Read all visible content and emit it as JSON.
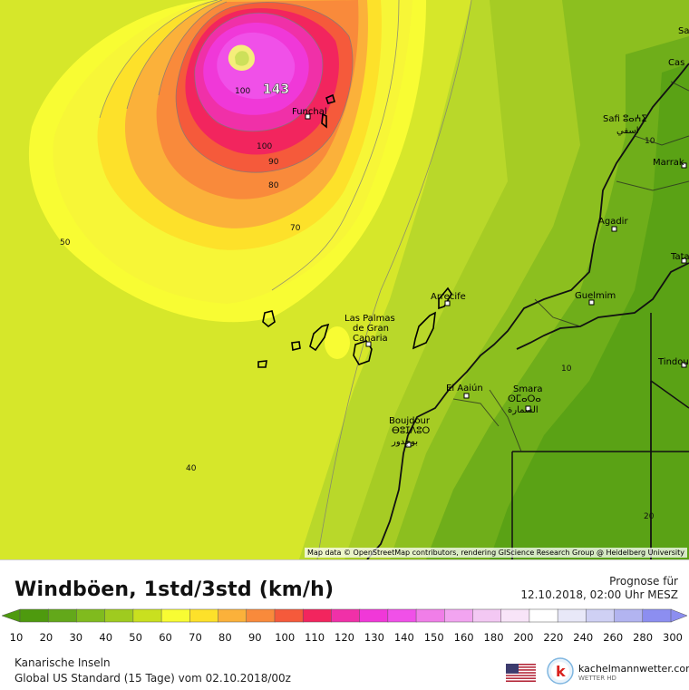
{
  "map": {
    "cities": [
      {
        "name": "Funchal"
      },
      {
        "name": "Safi ⵓⴰⵄⵉ"
      },
      {
        "name": "اسفي"
      },
      {
        "name": "Marrak"
      },
      {
        "name": "Agadir"
      },
      {
        "name": "Tata"
      },
      {
        "name": "Guelmim"
      },
      {
        "name": "Tindouf"
      },
      {
        "name": "Arrecife"
      },
      {
        "name": "Las Palmas"
      },
      {
        "name": "de Gran"
      },
      {
        "name": "Canaria"
      },
      {
        "name": "El Aaiún"
      },
      {
        "name": "Smara"
      },
      {
        "name": "ⵙⵎⴰⵔⴰ"
      },
      {
        "name": "السمارة"
      },
      {
        "name": "Boujdour"
      },
      {
        "name": "ⴱⵓⵊⴷⵓⵔ"
      },
      {
        "name": "بوجدور"
      },
      {
        "name": "Sa"
      },
      {
        "name": "Cas"
      }
    ],
    "peak_value": "143",
    "contour_labels": [
      "100",
      "100",
      "90",
      "80",
      "70",
      "50",
      "40",
      "10",
      "20"
    ],
    "attribution": "Map data © OpenStreetMap contributors, rendering GIScience Research Group @ Heidelberg University"
  },
  "legend": {
    "title": "Windböen, 1std/3std (km/h)",
    "forecast_label": "Prognose für",
    "forecast_time": "12.10.2018, 02:00 Uhr MESZ",
    "scale_values": [
      "10",
      "20",
      "30",
      "40",
      "50",
      "60",
      "70",
      "80",
      "90",
      "100",
      "110",
      "120",
      "130",
      "140",
      "150",
      "160",
      "180",
      "200",
      "220",
      "240",
      "260",
      "280",
      "300"
    ],
    "scale_colors": [
      "#4e9a0e",
      "#63a81a",
      "#80bb1e",
      "#9fcb1f",
      "#c9e01f",
      "#f8fc33",
      "#fde12a",
      "#fbb13a",
      "#f98a3b",
      "#f55a3b",
      "#f2255e",
      "#f030a8",
      "#f038d8",
      "#f050e8",
      "#f07ee8",
      "#f2a4f0",
      "#f3c8f3",
      "#f8e4f8",
      "#ffffff",
      "#e8e8f8",
      "#cfd0f4",
      "#b2b4f0",
      "#8c8ef0"
    ],
    "region": "Kanarische Inseln",
    "model": "Global US Standard (15 Tage) vom 02.10.2018/00z",
    "brand": "kachelmannwetter.com",
    "brand_sub": "WETTER HD"
  }
}
